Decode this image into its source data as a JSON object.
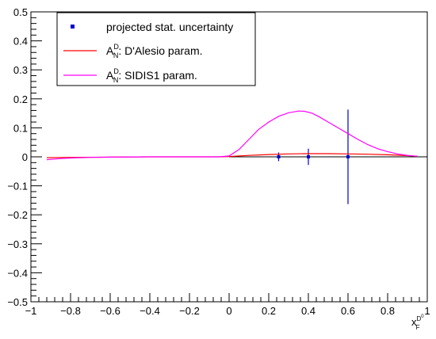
{
  "chart_data": {
    "type": "line",
    "title": "",
    "xlim": [
      -1,
      1
    ],
    "ylim": [
      -0.5,
      0.5
    ],
    "x_ticks": [
      -1,
      -0.8,
      -0.6,
      -0.4,
      -0.2,
      0,
      0.2,
      0.4,
      0.6,
      0.8,
      1
    ],
    "x_tick_labels": [
      "−1",
      "−0.8",
      "−0.6",
      "−0.4",
      "−0.2",
      "0",
      "0.2",
      "0.4",
      "0.6",
      "0.8",
      "1"
    ],
    "y_ticks": [
      -0.5,
      -0.4,
      -0.3,
      -0.2,
      -0.1,
      0,
      0.1,
      0.2,
      0.3,
      0.4,
      0.5
    ],
    "y_tick_labels": [
      "−0.5",
      "−0.4",
      "−0.3",
      "−0.2",
      "−0.1",
      "0",
      "0.1",
      "0.2",
      "0.3",
      "0.4",
      "0.5"
    ],
    "xlabel": {
      "base": "x",
      "sub": "F",
      "sup": "D",
      "supsup": "0"
    },
    "ylabel": "",
    "grid": false,
    "zero_line": true,
    "legend_position": "top-left",
    "series": [
      {
        "kind": "points",
        "label_parts": [
          "projected stat. uncertainty"
        ],
        "color": "#0000cc",
        "points": [
          {
            "x": 0.25,
            "y": 0.0,
            "err": 0.015
          },
          {
            "x": 0.4,
            "y": 0.0,
            "err": 0.028
          },
          {
            "x": 0.6,
            "y": 0.0,
            "err": 0.163
          }
        ]
      },
      {
        "kind": "line",
        "label_parts": [
          "A",
          "N",
          "D",
          ": D'Alesio param."
        ],
        "color": "#ff0000",
        "x": [
          -0.92,
          -0.8,
          -0.6,
          -0.4,
          -0.2,
          -0.05,
          0.0,
          0.1,
          0.2,
          0.3,
          0.4,
          0.5,
          0.6,
          0.7,
          0.8,
          0.9,
          0.95
        ],
        "y": [
          -0.003,
          -0.002,
          -0.001,
          0.0,
          0.0,
          0.0,
          0.001,
          0.005,
          0.008,
          0.01,
          0.011,
          0.011,
          0.01,
          0.009,
          0.007,
          0.004,
          0.002
        ]
      },
      {
        "kind": "line",
        "label_parts": [
          "A",
          "N",
          "D",
          ": SIDIS1 param."
        ],
        "color": "#ff00ff",
        "x": [
          -0.92,
          -0.85,
          -0.8,
          -0.7,
          -0.6,
          -0.4,
          -0.2,
          -0.05,
          0.0,
          0.05,
          0.1,
          0.15,
          0.2,
          0.25,
          0.3,
          0.35,
          0.38,
          0.42,
          0.45,
          0.5,
          0.55,
          0.6,
          0.65,
          0.7,
          0.75,
          0.8,
          0.85,
          0.9,
          0.95
        ],
        "y": [
          -0.01,
          -0.006,
          -0.004,
          -0.002,
          -0.001,
          0.0,
          0.0,
          0.0,
          0.003,
          0.025,
          0.06,
          0.095,
          0.12,
          0.14,
          0.152,
          0.158,
          0.157,
          0.15,
          0.14,
          0.12,
          0.1,
          0.08,
          0.06,
          0.042,
          0.028,
          0.018,
          0.01,
          0.005,
          0.002
        ]
      }
    ]
  }
}
